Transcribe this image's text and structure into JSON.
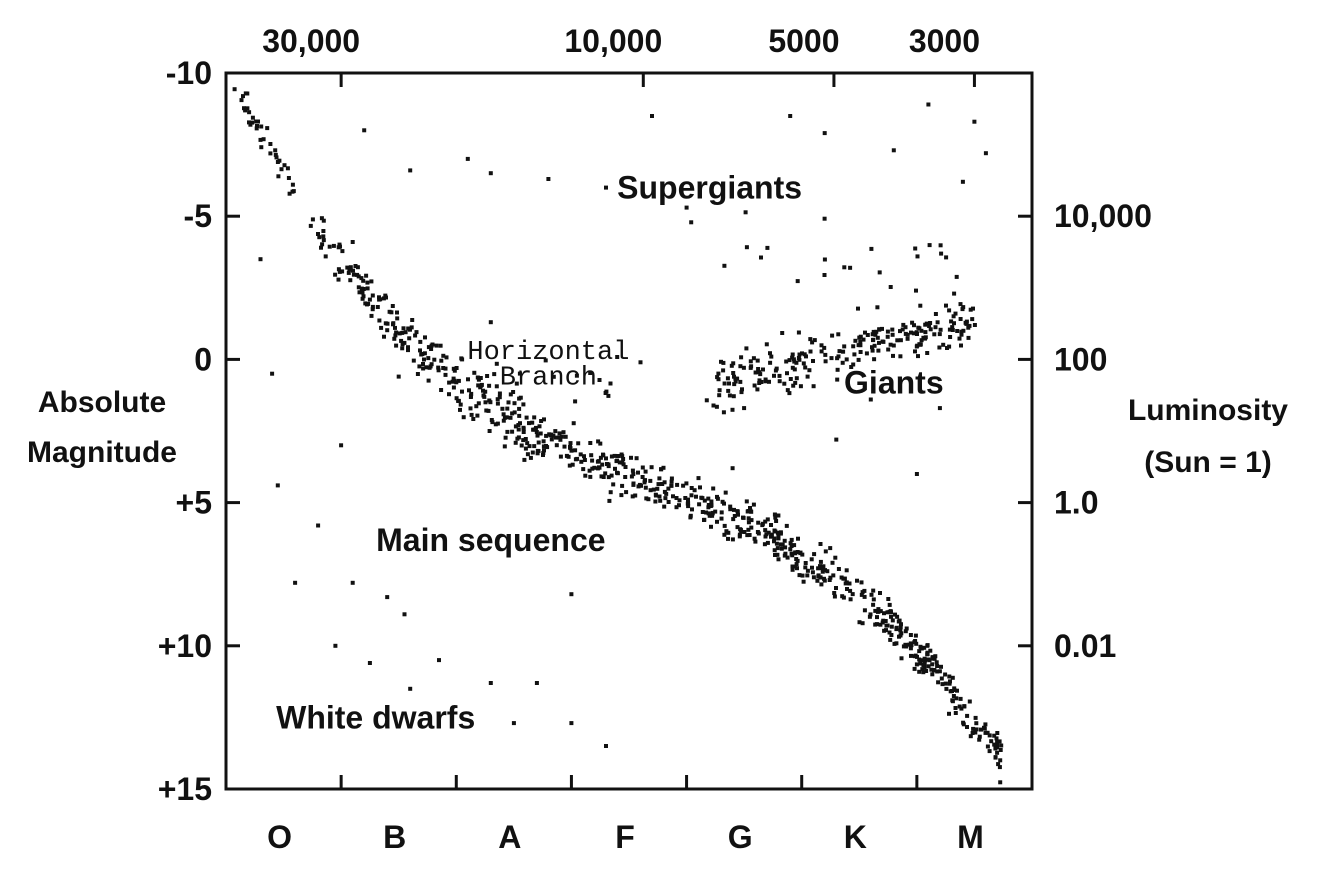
{
  "chart_data": {
    "type": "scatter",
    "title": "",
    "top_axis": {
      "label": "",
      "ticks": [
        {
          "value": 30000,
          "label": "30,000"
        },
        {
          "value": 10000,
          "label": "10,000"
        },
        {
          "value": 5000,
          "label": "5000"
        },
        {
          "value": 3000,
          "label": "3000"
        }
      ]
    },
    "bottom_axis": {
      "label": "",
      "categories": [
        "O",
        "B",
        "A",
        "F",
        "G",
        "K",
        "M"
      ]
    },
    "left_axis": {
      "label_lines": [
        "Absolute",
        "Magnitude"
      ],
      "range": [
        -10,
        15
      ],
      "inverted": true,
      "ticks": [
        {
          "value": -10,
          "label": "-10"
        },
        {
          "value": -5,
          "label": "-5"
        },
        {
          "value": 0,
          "label": "0"
        },
        {
          "value": 5,
          "label": "+5"
        },
        {
          "value": 10,
          "label": "+10"
        },
        {
          "value": 15,
          "label": "+15"
        }
      ]
    },
    "right_axis": {
      "label_lines": [
        "Luminosity",
        "(Sun = 1)"
      ],
      "ticks": [
        {
          "magnitude": -5,
          "label": "10,000"
        },
        {
          "magnitude": 0,
          "label": "100"
        },
        {
          "magnitude": 5,
          "label": "1.0"
        },
        {
          "magnitude": 10,
          "label": "0.01"
        }
      ]
    },
    "annotations": [
      {
        "text": "Supergiants",
        "class_pos": 4.2,
        "magnitude": -6.0
      },
      {
        "text": "Giants",
        "class_pos": 5.8,
        "magnitude": 0.8
      },
      {
        "text": "Main sequence",
        "class_pos": 2.3,
        "magnitude": 6.3
      },
      {
        "text": "White dwarfs",
        "class_pos": 1.3,
        "magnitude": 12.5
      },
      {
        "text": "Horizontal",
        "class_pos": 2.8,
        "magnitude": -0.4,
        "style": "mono"
      },
      {
        "text": "Branch",
        "class_pos": 2.8,
        "magnitude": 0.5,
        "style": "mono"
      }
    ],
    "series": [
      {
        "regions": [
          {
            "from": [
              0.1,
              -9.5
            ],
            "to": [
              0.8,
              -4.5
            ],
            "n": 40,
            "spread": 0.3
          },
          {
            "from": [
              0.8,
              -4.5
            ],
            "to": [
              1.6,
              -0.5
            ],
            "n": 90,
            "spread": 0.5
          },
          {
            "from": [
              1.6,
              -0.5
            ],
            "to": [
              2.6,
              2.5
            ],
            "n": 130,
            "spread": 0.7
          },
          {
            "from": [
              2.6,
              2.5
            ],
            "to": [
              3.6,
              4.2
            ],
            "n": 130,
            "spread": 0.6
          },
          {
            "from": [
              3.6,
              4.2
            ],
            "to": [
              4.6,
              5.8
            ],
            "n": 130,
            "spread": 0.6
          },
          {
            "from": [
              4.6,
              5.8
            ],
            "to": [
              5.6,
              8.5
            ],
            "n": 130,
            "spread": 0.6
          },
          {
            "from": [
              5.6,
              8.5
            ],
            "to": [
              6.2,
              11.0
            ],
            "n": 110,
            "spread": 0.5
          },
          {
            "from": [
              6.2,
              11.0
            ],
            "to": [
              6.75,
              14.0
            ],
            "n": 70,
            "spread": 0.45
          },
          {
            "from": [
              4.2,
              1.0
            ],
            "to": [
              5.5,
              -0.5
            ],
            "n": 120,
            "spread": 0.7
          },
          {
            "from": [
              5.5,
              -0.5
            ],
            "to": [
              6.5,
              -1.3
            ],
            "n": 110,
            "spread": 0.5
          },
          {
            "from": [
              2.0,
              0.2
            ],
            "to": [
              3.5,
              1.2
            ],
            "n": 18,
            "spread": 0.8
          },
          {
            "from": [
              4.0,
              -4.0
            ],
            "to": [
              6.5,
              -2.5
            ],
            "n": 30,
            "spread": 1.2
          }
        ],
        "points": [
          [
            1.2,
            -8.0
          ],
          [
            2.3,
            -6.5
          ],
          [
            2.8,
            -6.3
          ],
          [
            3.7,
            -8.5
          ],
          [
            4.0,
            -5.3
          ],
          [
            4.9,
            -8.5
          ],
          [
            5.2,
            -7.9
          ],
          [
            5.8,
            -7.3
          ],
          [
            6.1,
            -8.9
          ],
          [
            6.4,
            -6.2
          ],
          [
            6.5,
            -8.3
          ],
          [
            6.6,
            -7.2
          ],
          [
            3.3,
            -6.0
          ],
          [
            1.6,
            -6.6
          ],
          [
            2.1,
            -7.0
          ],
          [
            0.4,
            0.5
          ],
          [
            0.45,
            4.4
          ],
          [
            1.0,
            3.0
          ],
          [
            1.5,
            0.6
          ],
          [
            0.3,
            -3.5
          ],
          [
            1.1,
            -4.1
          ],
          [
            3.6,
            0.1
          ],
          [
            4.5,
            1.7
          ],
          [
            5.6,
            1.4
          ],
          [
            6.0,
            4.0
          ],
          [
            0.8,
            5.8
          ],
          [
            0.6,
            7.8
          ],
          [
            1.1,
            7.8
          ],
          [
            1.4,
            8.3
          ],
          [
            1.55,
            8.9
          ],
          [
            0.95,
            10.0
          ],
          [
            1.25,
            10.6
          ],
          [
            1.85,
            10.5
          ],
          [
            1.6,
            11.5
          ],
          [
            2.3,
            11.3
          ],
          [
            2.7,
            11.3
          ],
          [
            2.5,
            12.7
          ],
          [
            3.0,
            12.7
          ],
          [
            3.3,
            13.5
          ],
          [
            3.0,
            8.2
          ],
          [
            4.4,
            3.8
          ],
          [
            5.3,
            2.8
          ],
          [
            6.2,
            1.7
          ],
          [
            2.0,
            0.8
          ],
          [
            2.3,
            -1.3
          ]
        ]
      }
    ]
  }
}
